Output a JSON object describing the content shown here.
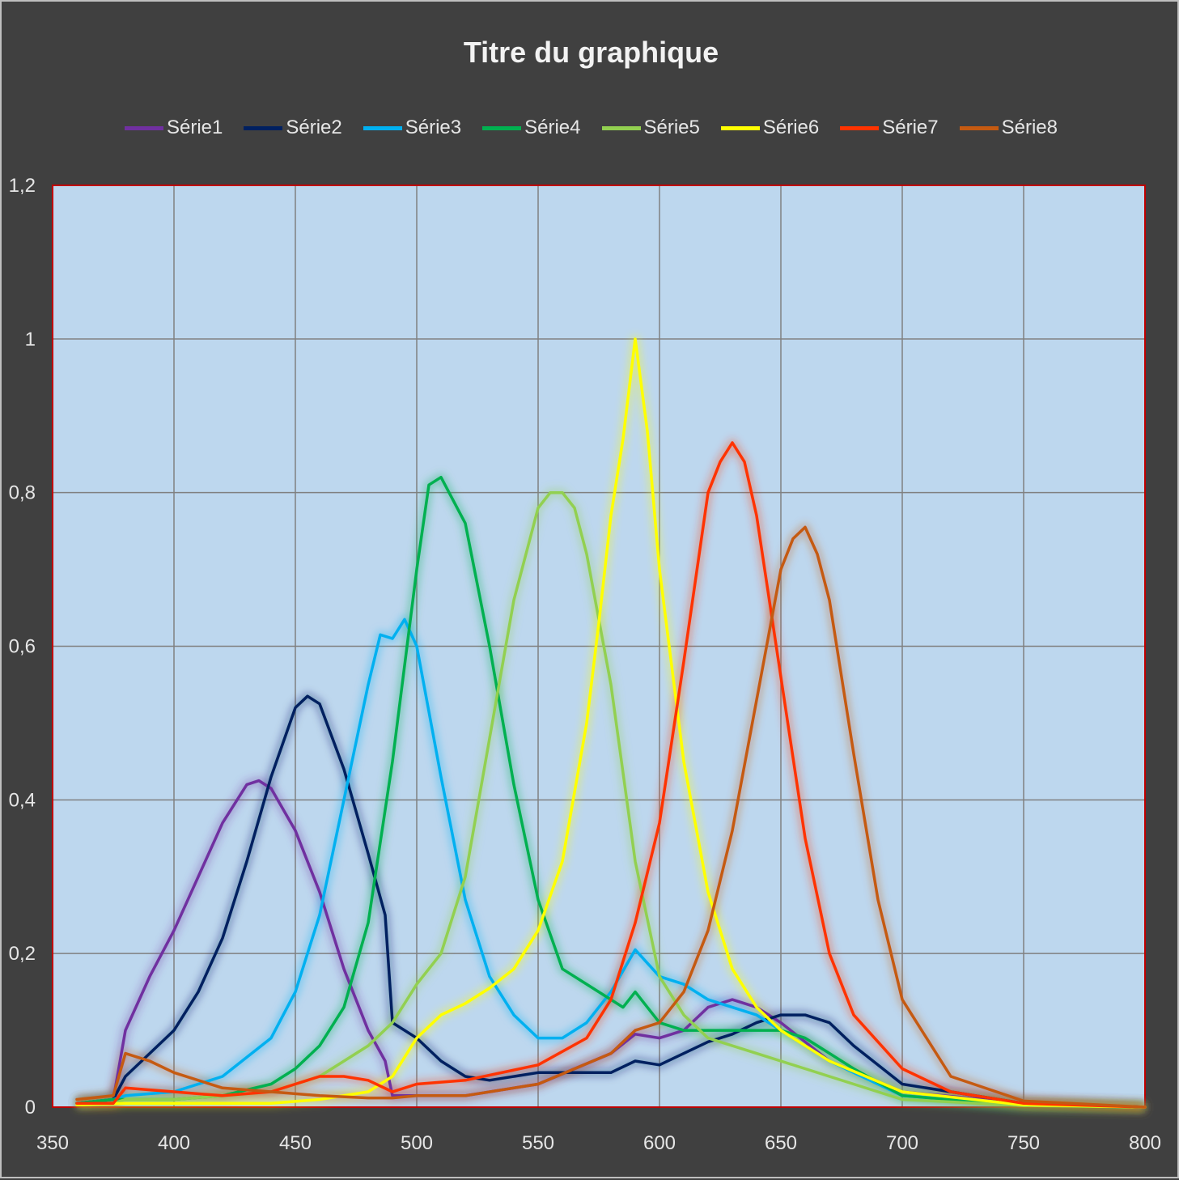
{
  "chart_data": {
    "type": "line",
    "title": "Titre du graphique",
    "xlabel": "",
    "ylabel": "",
    "xlim": [
      350,
      800
    ],
    "ylim": [
      0,
      1.2
    ],
    "x_ticks": [
      "350",
      "400",
      "450",
      "500",
      "550",
      "600",
      "650",
      "700",
      "750",
      "800"
    ],
    "y_ticks": [
      "0",
      "0,2",
      "0,4",
      "0,6",
      "0,8",
      "1",
      "1,2"
    ],
    "grid": true,
    "legend_position": "top",
    "plot_background": "#bdd7ee",
    "plot_border": "#c00000",
    "series": [
      {
        "name": "Série1",
        "color": "#7030a0",
        "x": [
          360,
          375,
          380,
          390,
          400,
          410,
          420,
          430,
          435,
          440,
          450,
          460,
          470,
          480,
          487,
          490,
          500,
          520,
          550,
          580,
          590,
          600,
          610,
          620,
          630,
          640,
          650,
          670,
          700,
          750,
          800
        ],
        "y": [
          0.005,
          0.01,
          0.1,
          0.17,
          0.23,
          0.3,
          0.37,
          0.42,
          0.425,
          0.415,
          0.36,
          0.28,
          0.18,
          0.1,
          0.06,
          0.015,
          0.015,
          0.015,
          0.03,
          0.07,
          0.095,
          0.09,
          0.1,
          0.13,
          0.14,
          0.13,
          0.11,
          0.06,
          0.02,
          0.005,
          0.0
        ]
      },
      {
        "name": "Série2",
        "color": "#002060",
        "x": [
          360,
          375,
          380,
          390,
          400,
          410,
          420,
          430,
          440,
          450,
          455,
          460,
          470,
          480,
          487,
          490,
          500,
          510,
          520,
          530,
          550,
          580,
          590,
          600,
          610,
          620,
          630,
          640,
          650,
          660,
          670,
          680,
          700,
          750,
          800
        ],
        "y": [
          0.005,
          0.01,
          0.04,
          0.07,
          0.1,
          0.15,
          0.22,
          0.32,
          0.43,
          0.52,
          0.535,
          0.525,
          0.44,
          0.33,
          0.25,
          0.11,
          0.09,
          0.06,
          0.04,
          0.035,
          0.045,
          0.045,
          0.06,
          0.055,
          0.07,
          0.085,
          0.095,
          0.11,
          0.12,
          0.12,
          0.11,
          0.08,
          0.03,
          0.005,
          0.0
        ]
      },
      {
        "name": "Série3",
        "color": "#00b0f0",
        "x": [
          360,
          375,
          380,
          400,
          420,
          440,
          450,
          460,
          470,
          480,
          485,
          490,
          495,
          500,
          510,
          520,
          530,
          540,
          550,
          560,
          570,
          580,
          590,
          600,
          610,
          620,
          630,
          640,
          650,
          670,
          700,
          750,
          800
        ],
        "y": [
          0.005,
          0.01,
          0.015,
          0.02,
          0.04,
          0.09,
          0.15,
          0.25,
          0.4,
          0.55,
          0.615,
          0.61,
          0.635,
          0.6,
          0.43,
          0.27,
          0.17,
          0.12,
          0.09,
          0.09,
          0.11,
          0.15,
          0.205,
          0.17,
          0.16,
          0.14,
          0.13,
          0.12,
          0.1,
          0.06,
          0.015,
          0.003,
          0.0
        ]
      },
      {
        "name": "Série4",
        "color": "#00b050",
        "x": [
          360,
          375,
          380,
          400,
          420,
          440,
          450,
          460,
          470,
          480,
          490,
          500,
          505,
          510,
          520,
          530,
          540,
          550,
          560,
          570,
          580,
          585,
          590,
          595,
          600,
          610,
          620,
          630,
          640,
          650,
          660,
          680,
          700,
          750,
          800
        ],
        "y": [
          0.005,
          0.01,
          0.01,
          0.01,
          0.015,
          0.03,
          0.05,
          0.08,
          0.13,
          0.24,
          0.45,
          0.7,
          0.81,
          0.82,
          0.76,
          0.6,
          0.42,
          0.27,
          0.18,
          0.16,
          0.14,
          0.13,
          0.15,
          0.13,
          0.11,
          0.1,
          0.1,
          0.1,
          0.1,
          0.1,
          0.09,
          0.05,
          0.015,
          0.002,
          0.0
        ]
      },
      {
        "name": "Série5",
        "color": "#92d050",
        "x": [
          360,
          375,
          380,
          400,
          420,
          440,
          460,
          480,
          490,
          500,
          510,
          520,
          530,
          540,
          550,
          555,
          560,
          565,
          570,
          580,
          590,
          600,
          610,
          620,
          640,
          660,
          680,
          700,
          750,
          800
        ],
        "y": [
          0.005,
          0.005,
          0.01,
          0.01,
          0.015,
          0.02,
          0.04,
          0.08,
          0.11,
          0.16,
          0.2,
          0.3,
          0.48,
          0.66,
          0.78,
          0.8,
          0.8,
          0.78,
          0.72,
          0.55,
          0.32,
          0.17,
          0.12,
          0.09,
          0.07,
          0.05,
          0.03,
          0.01,
          0.002,
          0.0
        ]
      },
      {
        "name": "Série6",
        "color": "#ffff00",
        "x": [
          360,
          380,
          400,
          420,
          440,
          460,
          480,
          490,
          500,
          510,
          520,
          530,
          540,
          550,
          560,
          570,
          575,
          580,
          585,
          590,
          595,
          600,
          610,
          620,
          630,
          640,
          650,
          670,
          700,
          750,
          800
        ],
        "y": [
          0.003,
          0.005,
          0.005,
          0.005,
          0.005,
          0.01,
          0.02,
          0.04,
          0.09,
          0.12,
          0.135,
          0.155,
          0.18,
          0.23,
          0.32,
          0.5,
          0.63,
          0.77,
          0.87,
          1.0,
          0.88,
          0.7,
          0.45,
          0.28,
          0.18,
          0.13,
          0.1,
          0.06,
          0.02,
          0.003,
          0.0
        ]
      },
      {
        "name": "Série7",
        "color": "#ff3300",
        "x": [
          360,
          375,
          380,
          400,
          420,
          440,
          450,
          460,
          470,
          480,
          490,
          500,
          520,
          550,
          570,
          580,
          590,
          600,
          610,
          620,
          625,
          630,
          635,
          640,
          650,
          660,
          670,
          680,
          700,
          720,
          750,
          800
        ],
        "y": [
          0.005,
          0.005,
          0.025,
          0.02,
          0.015,
          0.02,
          0.03,
          0.04,
          0.04,
          0.035,
          0.02,
          0.03,
          0.035,
          0.055,
          0.09,
          0.14,
          0.24,
          0.37,
          0.58,
          0.8,
          0.84,
          0.865,
          0.84,
          0.77,
          0.56,
          0.35,
          0.2,
          0.12,
          0.05,
          0.02,
          0.005,
          0.0
        ]
      },
      {
        "name": "Série8",
        "color": "#c55a11",
        "x": [
          360,
          375,
          380,
          390,
          400,
          420,
          440,
          460,
          480,
          490,
          500,
          520,
          550,
          580,
          590,
          600,
          610,
          620,
          630,
          640,
          650,
          655,
          660,
          665,
          670,
          680,
          690,
          700,
          720,
          750,
          800
        ],
        "y": [
          0.01,
          0.015,
          0.07,
          0.06,
          0.045,
          0.025,
          0.02,
          0.015,
          0.012,
          0.012,
          0.015,
          0.015,
          0.03,
          0.07,
          0.1,
          0.11,
          0.15,
          0.23,
          0.36,
          0.53,
          0.7,
          0.74,
          0.755,
          0.72,
          0.66,
          0.46,
          0.27,
          0.14,
          0.04,
          0.008,
          0.0
        ]
      }
    ]
  }
}
